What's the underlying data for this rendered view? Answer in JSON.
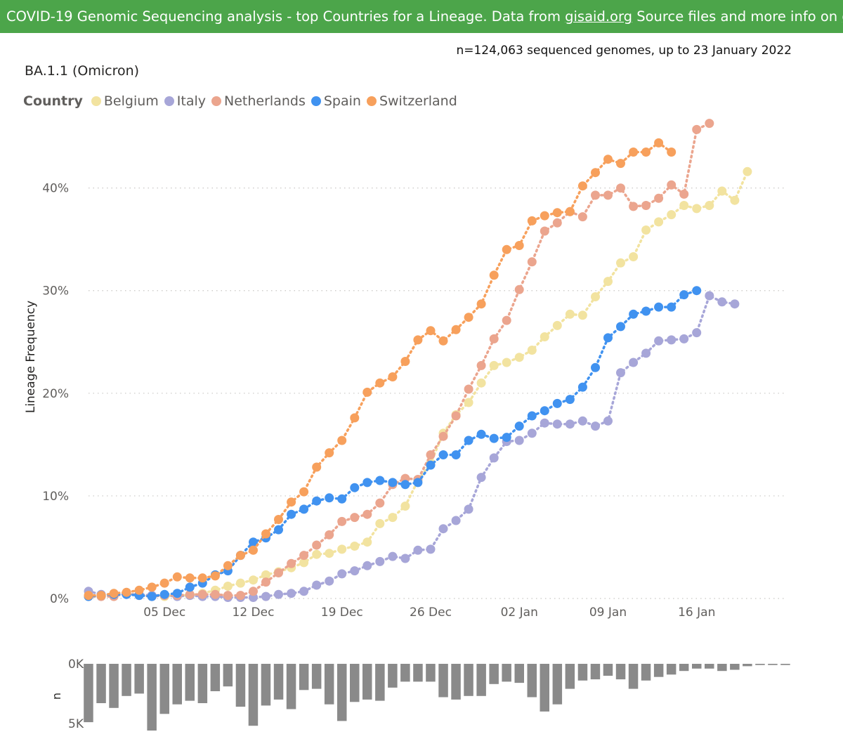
{
  "banner": {
    "text_1": "COVID-19 Genomic Sequencing analysis - top Countries for a Lineage. Data from ",
    "link_gisaid": "gisaid.org",
    "text_2": " Source files and more info on ",
    "link_github": "github",
    "text_3": ".",
    "background": "#4ca54a"
  },
  "summary": "n=124,063 sequenced genomes, up to 23 January 2022",
  "lineage_title": "BA.1.1 (Omicron)",
  "legend": {
    "title": "Country",
    "items": [
      {
        "label": "Belgium",
        "color": "#f2e3a0"
      },
      {
        "label": "Italy",
        "color": "#a7a6d8"
      },
      {
        "label": "Netherlands",
        "color": "#eba58e"
      },
      {
        "label": "Spain",
        "color": "#4092f0"
      },
      {
        "label": "Switzerland",
        "color": "#f7a05c"
      }
    ]
  },
  "chart_data": [
    {
      "type": "line",
      "ylabel": "Lineage Frequency",
      "ytick_labels": [
        "0%",
        "10%",
        "20%",
        "30%",
        "40%"
      ],
      "yticks": [
        0,
        10,
        20,
        30,
        40
      ],
      "ylim": [
        0,
        46
      ],
      "xtick_labels": [
        "05 Dec",
        "12 Dec",
        "19 Dec",
        "26 Dec",
        "02 Jan",
        "09 Jan",
        "16 Jan"
      ],
      "x_dates": [
        "2021-11-29",
        "2021-11-30",
        "2021-12-01",
        "2021-12-02",
        "2021-12-03",
        "2021-12-04",
        "2021-12-05",
        "2021-12-06",
        "2021-12-07",
        "2021-12-08",
        "2021-12-09",
        "2021-12-10",
        "2021-12-11",
        "2021-12-12",
        "2021-12-13",
        "2021-12-14",
        "2021-12-15",
        "2021-12-16",
        "2021-12-17",
        "2021-12-18",
        "2021-12-19",
        "2021-12-20",
        "2021-12-21",
        "2021-12-22",
        "2021-12-23",
        "2021-12-24",
        "2021-12-25",
        "2021-12-26",
        "2021-12-27",
        "2021-12-28",
        "2021-12-29",
        "2021-12-30",
        "2021-12-31",
        "2022-01-01",
        "2022-01-02",
        "2022-01-03",
        "2022-01-04",
        "2022-01-05",
        "2022-01-06",
        "2022-01-07",
        "2022-01-08",
        "2022-01-09",
        "2022-01-10",
        "2022-01-11",
        "2022-01-12",
        "2022-01-13",
        "2022-01-14",
        "2022-01-15",
        "2022-01-16",
        "2022-01-17",
        "2022-01-18",
        "2022-01-19",
        "2022-01-20",
        "2022-01-21",
        "2022-01-22",
        "2022-01-23"
      ],
      "grid": true,
      "series": [
        {
          "name": "Belgium",
          "color": "#f2e3a0",
          "values": [
            null,
            null,
            null,
            null,
            null,
            null,
            0.2,
            0.3,
            0.3,
            0.5,
            0.8,
            1.2,
            1.5,
            1.8,
            2.3,
            2.6,
            3.0,
            3.5,
            4.3,
            4.4,
            4.8,
            5.1,
            5.5,
            7.3,
            7.9,
            9.0,
            11.5,
            13.2,
            16.1,
            17.9,
            19.1,
            21.0,
            22.7,
            23.0,
            23.5,
            24.2,
            25.5,
            26.6,
            27.7,
            27.6,
            29.4,
            30.9,
            32.7,
            33.3,
            35.9,
            36.7,
            37.4,
            38.3,
            38.0,
            38.3,
            39.7,
            38.8,
            41.6,
            null,
            null,
            null
          ]
        },
        {
          "name": "Italy",
          "color": "#a7a6d8",
          "values": [
            0.7,
            0.4,
            0.4,
            0.4,
            0.4,
            0.3,
            0.3,
            0.2,
            0.3,
            0.2,
            0.2,
            0.1,
            0.1,
            0.1,
            0.2,
            0.4,
            0.5,
            0.7,
            1.3,
            1.7,
            2.4,
            2.7,
            3.2,
            3.6,
            4.1,
            3.9,
            4.7,
            4.8,
            6.8,
            7.6,
            8.7,
            11.8,
            13.7,
            15.3,
            15.4,
            16.1,
            17.1,
            17.0,
            17.0,
            17.3,
            16.8,
            17.3,
            22.0,
            23.0,
            23.9,
            25.1,
            25.2,
            25.3,
            25.9,
            29.5,
            28.9,
            28.7,
            null,
            null,
            null,
            null
          ]
        },
        {
          "name": "Netherlands",
          "color": "#eba58e",
          "values": [
            0.2,
            0.2,
            0.2,
            0.5,
            0.3,
            0.2,
            0.3,
            0.3,
            0.4,
            0.4,
            0.4,
            0.3,
            0.3,
            0.7,
            1.6,
            2.5,
            3.4,
            4.2,
            5.2,
            6.2,
            7.5,
            7.9,
            8.2,
            9.3,
            11.1,
            11.7,
            11.6,
            14.0,
            15.8,
            17.8,
            20.4,
            22.7,
            25.3,
            27.1,
            30.1,
            32.8,
            35.8,
            36.6,
            37.7,
            37.2,
            39.3,
            39.3,
            40.0,
            38.2,
            38.3,
            39.0,
            40.3,
            39.4,
            45.7,
            46.3,
            null,
            null,
            null,
            null,
            null,
            null
          ]
        },
        {
          "name": "Spain",
          "color": "#4092f0",
          "values": [
            0.2,
            0.3,
            0.4,
            0.4,
            0.3,
            0.2,
            0.4,
            0.5,
            1.1,
            1.5,
            2.3,
            2.7,
            4.2,
            5.5,
            5.9,
            6.7,
            8.2,
            8.7,
            9.5,
            9.8,
            9.7,
            10.8,
            11.3,
            11.5,
            11.3,
            11.1,
            11.3,
            13.0,
            14.0,
            14.0,
            15.4,
            16.0,
            15.6,
            15.7,
            16.8,
            17.8,
            18.3,
            19.0,
            19.4,
            20.6,
            22.5,
            25.4,
            26.5,
            27.7,
            28.0,
            28.4,
            28.4,
            29.6,
            30.0,
            null,
            null,
            null,
            null,
            null,
            null,
            null
          ]
        },
        {
          "name": "Switzerland",
          "color": "#f7a05c",
          "values": [
            0.3,
            0.3,
            0.5,
            0.6,
            0.8,
            1.1,
            1.5,
            2.1,
            2.0,
            2.0,
            2.2,
            3.2,
            4.2,
            4.7,
            6.3,
            7.7,
            9.4,
            10.4,
            12.8,
            14.2,
            15.4,
            17.6,
            20.1,
            21.0,
            21.6,
            23.1,
            25.2,
            26.1,
            25.1,
            26.2,
            27.4,
            28.7,
            31.5,
            34.0,
            34.4,
            36.8,
            37.3,
            37.6,
            37.7,
            40.2,
            41.5,
            42.8,
            42.4,
            43.5,
            43.5,
            44.4,
            43.5,
            null,
            null,
            null,
            null,
            null,
            null,
            null,
            null,
            null
          ]
        }
      ]
    },
    {
      "type": "bar",
      "ylabel": "n",
      "ytick_labels": [
        "0K",
        "5K"
      ],
      "yticks": [
        0,
        5000
      ],
      "ylim": [
        0,
        5600
      ],
      "bar_color": "#8a8a8a",
      "values": [
        4900,
        3300,
        3700,
        2700,
        2500,
        5600,
        4200,
        3400,
        3100,
        3300,
        2300,
        1900,
        3600,
        5200,
        3500,
        3000,
        3800,
        2200,
        2100,
        3400,
        4800,
        3200,
        3000,
        3100,
        2000,
        1500,
        1500,
        1500,
        2800,
        3000,
        2700,
        2700,
        1700,
        1500,
        1600,
        2800,
        4000,
        3400,
        2100,
        1400,
        1300,
        1000,
        1300,
        2100,
        1400,
        1100,
        900,
        600,
        400,
        400,
        600,
        500,
        200,
        100,
        100,
        100
      ]
    }
  ]
}
